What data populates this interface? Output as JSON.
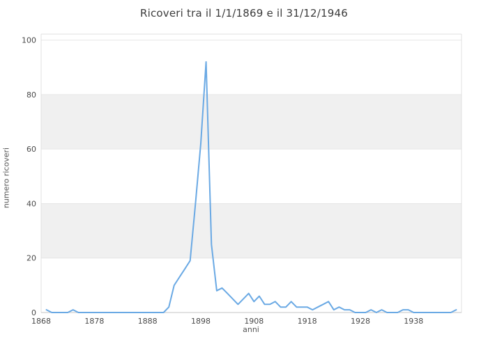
{
  "title": "Ricoveri tra il 1/1/1869 e il 31/12/1946",
  "colors": {
    "line": "#6aa9e4",
    "band_fill": "#f0f0f0",
    "gridline": "#e6e6e6",
    "plot_border": "#e0e0e0",
    "axis_line": "#c6c6c6",
    "title_text": "#3b3b3b",
    "tick_text": "#494949",
    "axis_title_text": "#545454",
    "background": "#ffffff"
  },
  "chart_data": {
    "type": "line",
    "title": "Ricoveri tra il 1/1/1869 e il 31/12/1946",
    "xlabel": "anni",
    "ylabel": "numero ricoveri",
    "xlim": [
      1868,
      1947
    ],
    "ylim": [
      0,
      102.2
    ],
    "x_ticks": [
      1868,
      1878,
      1888,
      1898,
      1908,
      1918,
      1928,
      1938
    ],
    "y_ticks": [
      0,
      20,
      40,
      60,
      80,
      100
    ],
    "grid": true,
    "alternating_bands": [
      [
        20,
        40
      ],
      [
        60,
        80
      ]
    ],
    "legend": "none",
    "x": [
      1869,
      1870,
      1871,
      1872,
      1873,
      1874,
      1875,
      1876,
      1877,
      1878,
      1879,
      1880,
      1881,
      1882,
      1883,
      1884,
      1885,
      1886,
      1887,
      1888,
      1889,
      1890,
      1891,
      1892,
      1893,
      1894,
      1895,
      1896,
      1897,
      1898,
      1899,
      1900,
      1901,
      1902,
      1903,
      1904,
      1905,
      1906,
      1907,
      1908,
      1909,
      1910,
      1911,
      1912,
      1913,
      1914,
      1915,
      1916,
      1917,
      1918,
      1919,
      1920,
      1921,
      1922,
      1923,
      1924,
      1925,
      1926,
      1927,
      1928,
      1929,
      1930,
      1931,
      1932,
      1933,
      1934,
      1935,
      1936,
      1937,
      1938,
      1939,
      1940,
      1941,
      1942,
      1943,
      1944,
      1945,
      1946
    ],
    "y": [
      1,
      0,
      0,
      0,
      0,
      1,
      0,
      0,
      0,
      0,
      0,
      0,
      0,
      0,
      0,
      0,
      0,
      0,
      0,
      0,
      0,
      0,
      0,
      2,
      10,
      13,
      16,
      19,
      40,
      62,
      92,
      25,
      8,
      9,
      7,
      5,
      3,
      5,
      7,
      4,
      6,
      3,
      3,
      4,
      2,
      2,
      4,
      2,
      2,
      2,
      1,
      2,
      3,
      4,
      1,
      2,
      1,
      1,
      0,
      0,
      0,
      1,
      0,
      1,
      0,
      0,
      0,
      1,
      1,
      0,
      0,
      0,
      0,
      0,
      0,
      0,
      0,
      1
    ]
  }
}
